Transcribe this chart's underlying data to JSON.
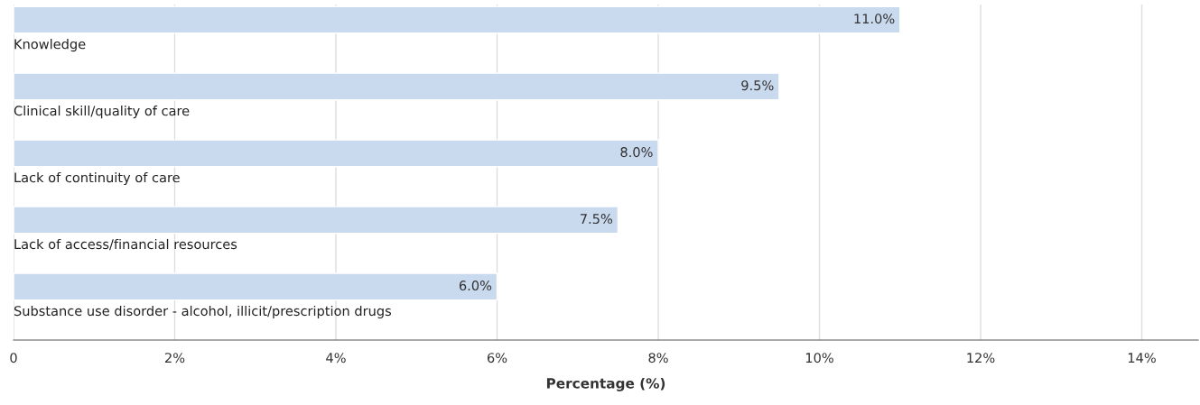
{
  "chart_data": {
    "type": "bar",
    "orientation": "horizontal",
    "xlabel": "Percentage (%)",
    "categories": [
      "Knowledge",
      "Clinical skill/quality of care",
      "Lack of continuity of care",
      "Lack of access/financial resources",
      "Substance use disorder - alcohol, illicit/prescription drugs"
    ],
    "values": [
      11.0,
      9.5,
      8.0,
      7.5,
      6.0
    ],
    "value_labels": [
      "11.0%",
      "9.5%",
      "8.0%",
      "7.5%",
      "6.0%"
    ],
    "color": "#c9d9ee",
    "xlim": [
      0,
      14.7
    ],
    "xticks": [
      0,
      {
        "value": 2,
        "label": "2%"
      },
      {
        "value": 4,
        "label": "4%"
      },
      {
        "value": 6,
        "label": "6%"
      },
      {
        "value": 8,
        "label": "8%"
      },
      {
        "value": 10,
        "label": "10%"
      },
      {
        "value": 12,
        "label": "12%"
      },
      {
        "value": 14,
        "label": "14%"
      }
    ],
    "grid": "x"
  }
}
